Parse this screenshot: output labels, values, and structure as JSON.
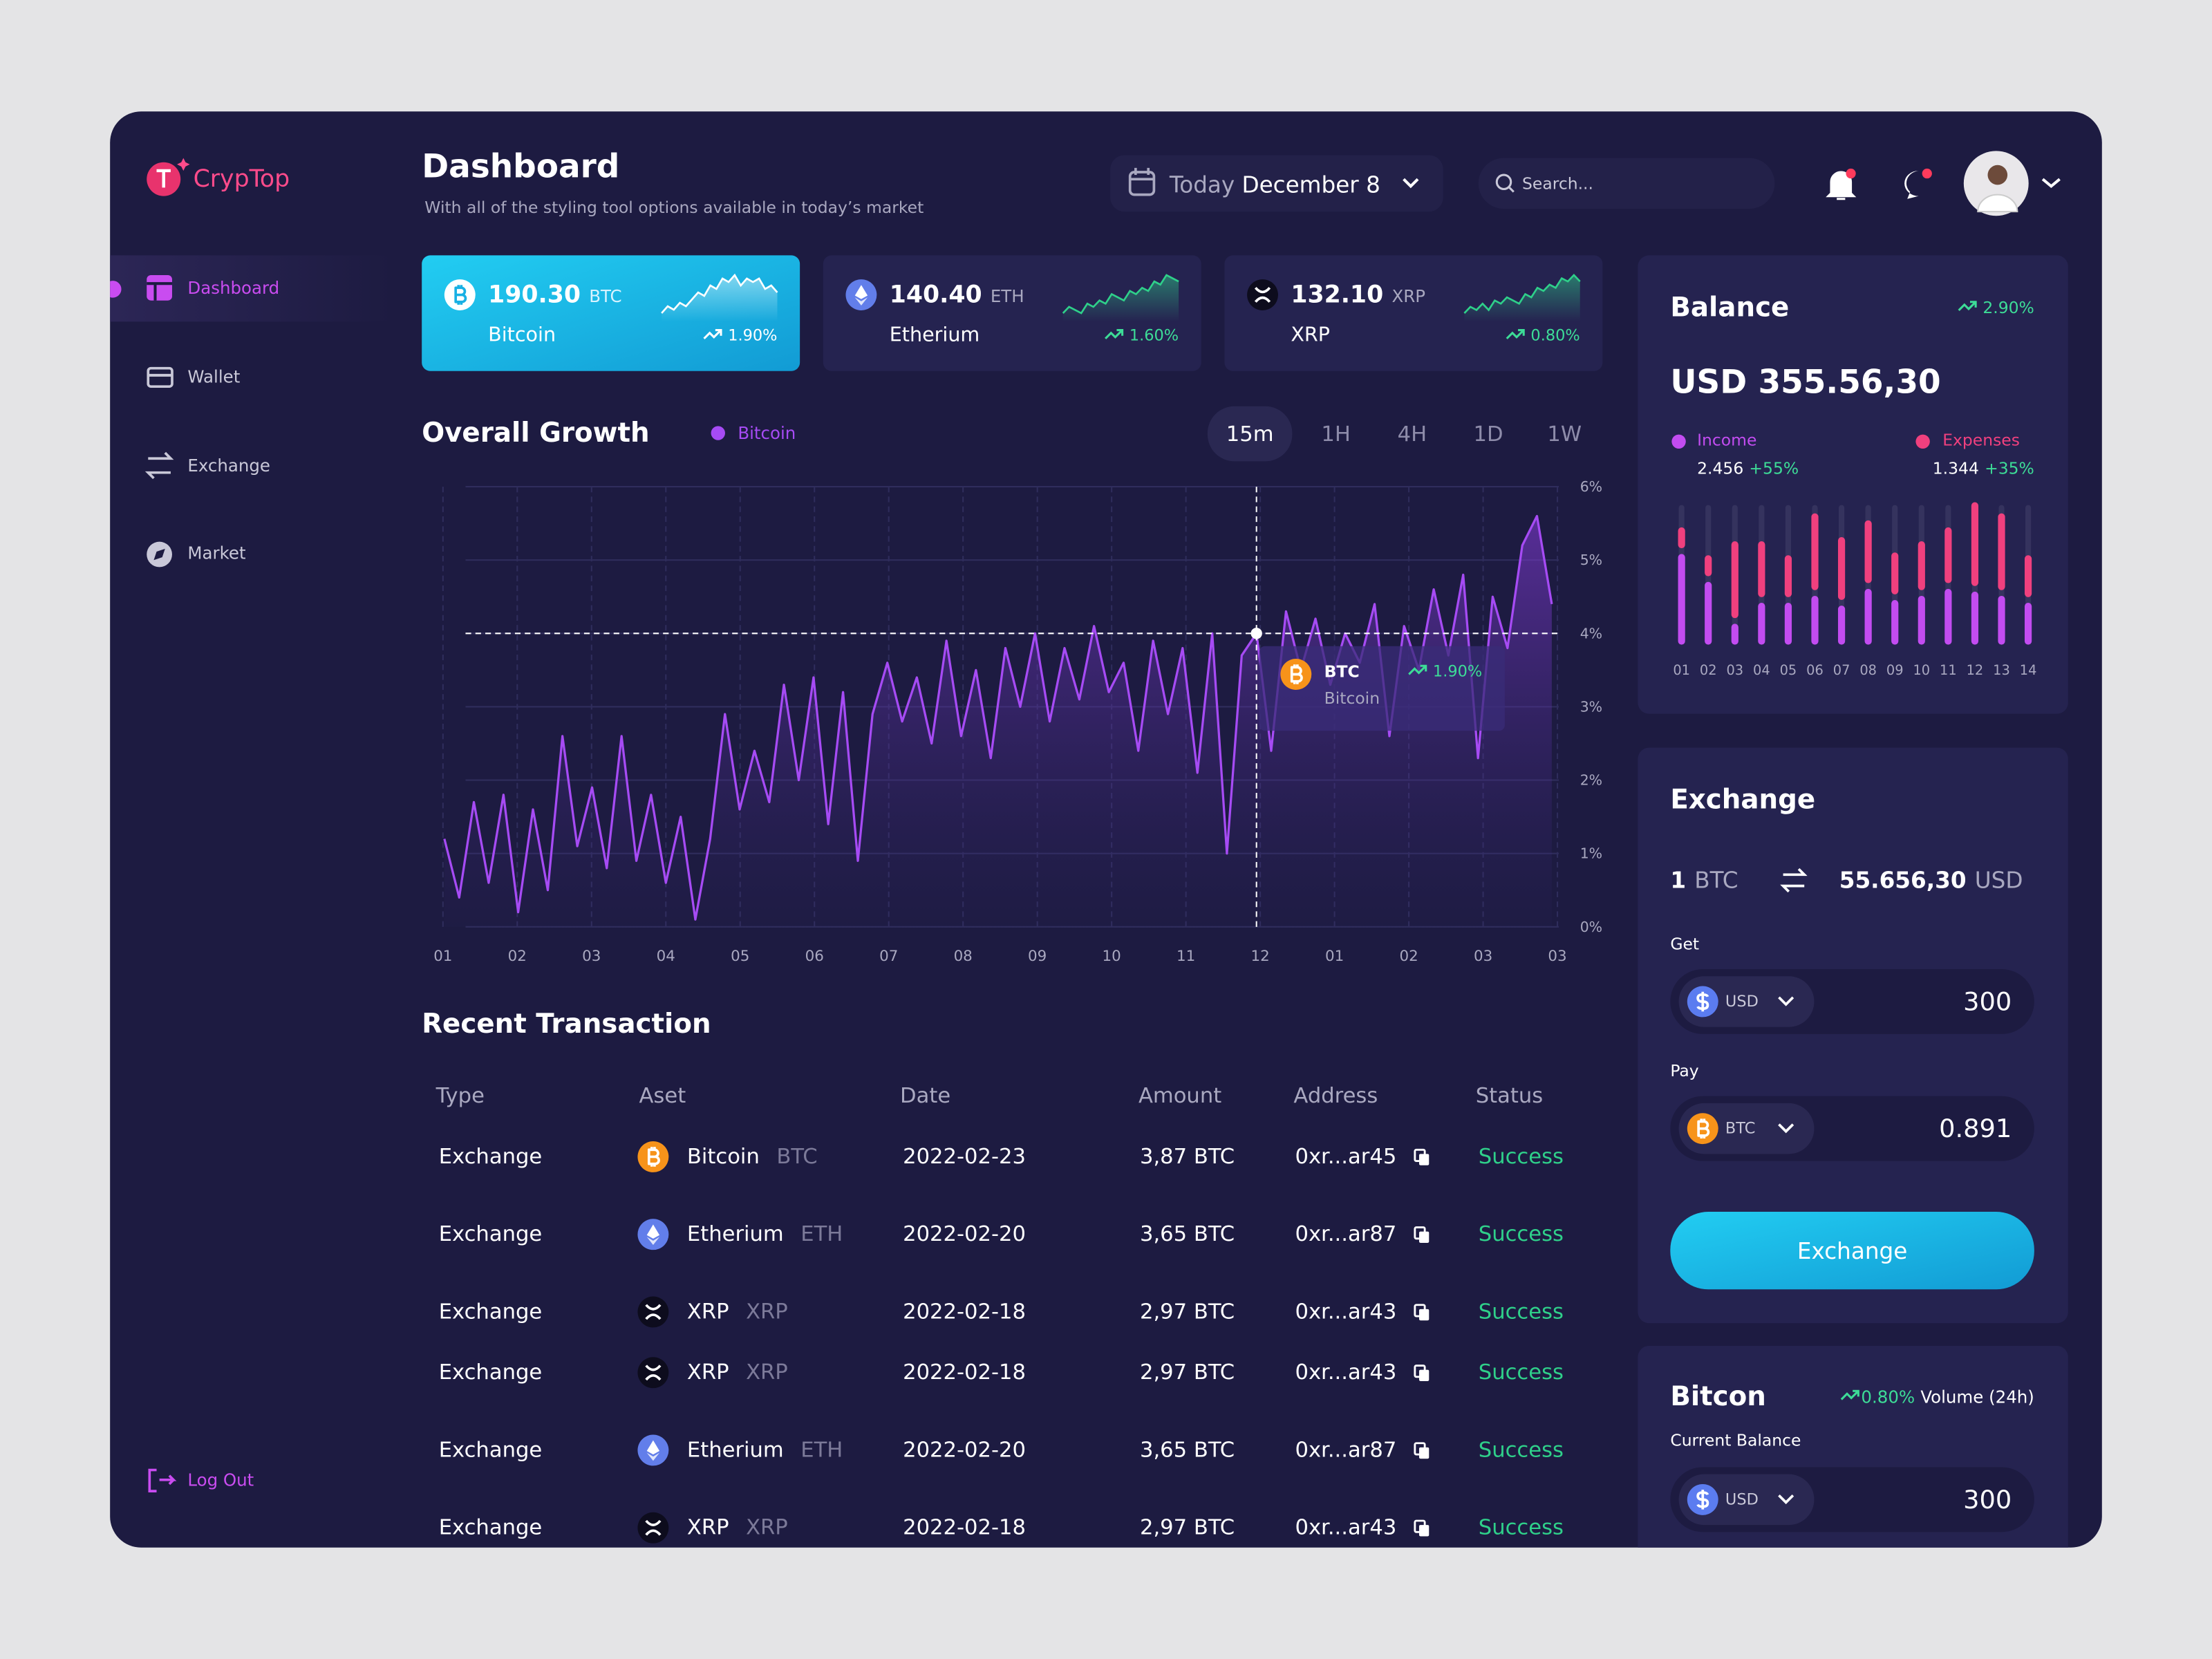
{
  "brand": "CrypTop",
  "nav": [
    "Dashboard",
    "Wallet",
    "Exchange",
    "Market"
  ],
  "active_nav": 0,
  "logout": "Log Out",
  "header": {
    "title": "Dashboard",
    "subtitle": "With all of the styling tool options available in today’s market",
    "date_prefix": "Today",
    "date": "December 8",
    "search": "Search..."
  },
  "active_ticker": 0,
  "tickers": [
    {
      "price": "190.30",
      "symbol": "BTC",
      "name": "Bitcoin",
      "change": "1.90%",
      "icon": "bitcoin",
      "spark": [
        2,
        3,
        2.5,
        3.5,
        3,
        4,
        5,
        4.5,
        6,
        5.5,
        7,
        6.5,
        7.5,
        6,
        7,
        6.5,
        7,
        5.5,
        6,
        5
      ]
    },
    {
      "price": "140.40",
      "symbol": "ETH",
      "name": "Etherium",
      "change": "1.60%",
      "icon": "ethereum",
      "spark": [
        1,
        2,
        1.5,
        1,
        2.5,
        2,
        3,
        2.5,
        4,
        3.5,
        3,
        4.5,
        4,
        5,
        4.5,
        6,
        5.5,
        7,
        6.5,
        6
      ]
    },
    {
      "price": "132.10",
      "symbol": "XRP",
      "name": "XRP",
      "change": "0.80%",
      "icon": "xrp",
      "spark": [
        1,
        2,
        1.5,
        2.5,
        1.5,
        3,
        2.5,
        3.5,
        3,
        2.5,
        4,
        3.5,
        5,
        4.5,
        5.5,
        5,
        6.5,
        6,
        7,
        6
      ]
    }
  ],
  "growth": {
    "title": "Overall Growth",
    "series_name": "Bitcoin",
    "color": "#a64bf4",
    "timeframes": [
      "15m",
      "1H",
      "4H",
      "1D",
      "1W"
    ],
    "active_timeframe": 0,
    "ylim": [
      0,
      6
    ],
    "yticks": [
      {
        "value": 0,
        "label": "0%"
      },
      {
        "value": 1,
        "label": "1%"
      },
      {
        "value": 2,
        "label": "2%"
      },
      {
        "value": 3,
        "label": "3%"
      },
      {
        "value": 4,
        "label": "4%"
      },
      {
        "value": 5,
        "label": "5%"
      },
      {
        "value": 6,
        "label": "6%"
      }
    ],
    "xlabels": [
      "01",
      "02",
      "03",
      "04",
      "05",
      "06",
      "07",
      "08",
      "09",
      "10",
      "11",
      "12",
      "01",
      "02",
      "03",
      "03"
    ],
    "values": [
      1.2,
      0.4,
      1.7,
      0.6,
      1.8,
      0.2,
      1.6,
      0.5,
      2.6,
      1.1,
      1.9,
      0.8,
      2.6,
      0.9,
      1.8,
      0.6,
      1.5,
      0.1,
      1.2,
      2.9,
      1.6,
      2.4,
      1.7,
      3.3,
      2.0,
      3.4,
      1.4,
      3.2,
      0.9,
      2.9,
      3.6,
      2.8,
      3.4,
      2.5,
      3.9,
      2.6,
      3.5,
      2.3,
      3.8,
      3.0,
      4.0,
      2.8,
      3.8,
      3.1,
      4.1,
      3.2,
      3.6,
      2.4,
      3.9,
      2.9,
      3.8,
      2.1,
      4.0,
      1.0,
      3.7,
      4.0,
      2.4,
      4.3,
      3.5,
      4.2,
      3.3,
      4.0,
      3.6,
      4.4,
      2.6,
      4.1,
      3.5,
      4.6,
      3.7,
      4.8,
      2.3,
      4.5,
      3.8,
      5.2,
      5.6,
      4.4
    ],
    "crosshair_index": 55,
    "tooltip": {
      "symbol": "BTC",
      "name": "Bitcoin",
      "change": "1.90%",
      "icon": "bitcoin"
    }
  },
  "transactions": {
    "title": "Recent Transaction",
    "columns": [
      "Type",
      "Aset",
      "Date",
      "Amount",
      "Address",
      "Status"
    ],
    "rows": [
      {
        "type": "Exchange",
        "asset": "Bitcoin",
        "symbol": "BTC",
        "icon": "bitcoin",
        "date": "2022-02-23",
        "amount": "3,87 BTC",
        "address": "0xr...ar45",
        "status": "Success"
      },
      {
        "type": "Exchange",
        "asset": "Etherium",
        "symbol": "ETH",
        "icon": "ethereum",
        "date": "2022-02-20",
        "amount": "3,65 BTC",
        "address": "0xr...ar87",
        "status": "Success"
      },
      {
        "type": "Exchange",
        "asset": "XRP",
        "symbol": "XRP",
        "icon": "xrp",
        "date": "2022-02-18",
        "amount": "2,97 BTC",
        "address": "0xr...ar43",
        "status": "Success"
      },
      {
        "type": "Exchange",
        "asset": "XRP",
        "symbol": "XRP",
        "icon": "xrp",
        "date": "2022-02-18",
        "amount": "2,97 BTC",
        "address": "0xr...ar43",
        "status": "Success"
      },
      {
        "type": "Exchange",
        "asset": "Etherium",
        "symbol": "ETH",
        "icon": "ethereum",
        "date": "2022-02-20",
        "amount": "3,65 BTC",
        "address": "0xr...ar87",
        "status": "Success"
      },
      {
        "type": "Exchange",
        "asset": "XRP",
        "symbol": "XRP",
        "icon": "xrp",
        "date": "2022-02-18",
        "amount": "2,97 BTC",
        "address": "0xr...ar43",
        "status": "Success"
      }
    ]
  },
  "balance": {
    "title": "Balance",
    "change": "2.90%",
    "amount": "USD 355.56,30",
    "legend": [
      {
        "value": "2.456",
        "change": "+55%"
      },
      {
        "value": "1.344",
        "change": "+35%"
      }
    ],
    "chart": {
      "type": "bar",
      "categories": [
        "01",
        "02",
        "03",
        "04",
        "05",
        "06",
        "07",
        "08",
        "09",
        "10",
        "11",
        "12",
        "13",
        "14"
      ],
      "ylim": [
        0,
        100
      ],
      "series": [
        {
          "name": "Income",
          "color": "#c24cf0",
          "values": [
            65,
            45,
            15,
            30,
            30,
            35,
            28,
            40,
            32,
            35,
            40,
            38,
            35,
            30
          ]
        },
        {
          "name": "Expenses",
          "color": "#f0407e",
          "values": [
            15,
            15,
            55,
            40,
            30,
            55,
            45,
            45,
            30,
            35,
            40,
            60,
            55,
            30
          ]
        }
      ]
    }
  },
  "exchange": {
    "title": "Exchange",
    "from_amount": "1",
    "from_symbol": "BTC",
    "to_amount": "55.656,30",
    "to_symbol": "USD",
    "get_label": "Get",
    "get_currency": "USD",
    "get_amount": "300",
    "pay_label": "Pay",
    "pay_currency": "BTC",
    "pay_amount": "0.891",
    "button": "Exchange"
  },
  "coin_panel": {
    "title": "Bitcon",
    "change": "0.80%",
    "volume_label": "Volume (24h)",
    "balance_label": "Current Balance",
    "currency": "USD",
    "amount": "300"
  }
}
